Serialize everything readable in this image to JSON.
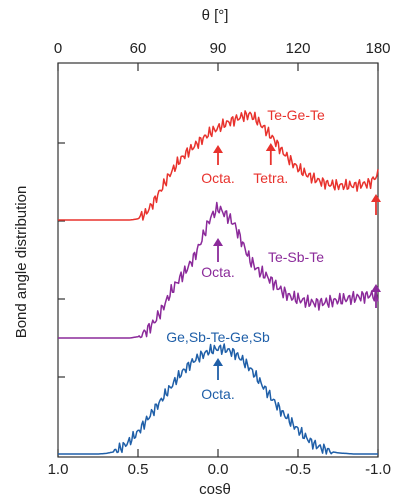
{
  "chart_data": {
    "type": "line",
    "title": "",
    "xlabel_top": "θ  [°]",
    "xlabel_bottom": "cosθ",
    "ylabel": "Bond angle distribution",
    "x_top_ticks": [
      "0",
      "60",
      "90",
      "120",
      "180"
    ],
    "x_top_tick_values_deg": [
      0,
      60,
      90,
      120,
      180
    ],
    "x_bottom_ticks": [
      "1.0",
      "0.5",
      "0.0",
      "-0.5",
      "-1.0"
    ],
    "x_bottom_tick_values": [
      1.0,
      0.5,
      0.0,
      -0.5,
      -1.0
    ],
    "xlim_cos": [
      1.0,
      -1.0
    ],
    "y_ticks_shown": false,
    "grid": false,
    "series": [
      {
        "name": "Te-Ge-Te",
        "color": "#e8322d",
        "baseline": 0.0,
        "x": [
          1.0,
          0.55,
          0.5,
          0.45,
          0.4,
          0.35,
          0.3,
          0.25,
          0.2,
          0.15,
          0.1,
          0.05,
          0.0,
          -0.05,
          -0.1,
          -0.15,
          -0.2,
          -0.25,
          -0.3,
          -0.35,
          -0.4,
          -0.45,
          -0.5,
          -0.55,
          -0.6,
          -0.65,
          -0.7,
          -0.75,
          -0.8,
          -0.85,
          -0.9,
          -0.95,
          -1.0
        ],
        "values": [
          0.0,
          0.0,
          0.01,
          0.06,
          0.16,
          0.28,
          0.4,
          0.5,
          0.58,
          0.64,
          0.7,
          0.76,
          0.8,
          0.84,
          0.87,
          0.9,
          0.92,
          0.86,
          0.78,
          0.7,
          0.6,
          0.52,
          0.45,
          0.4,
          0.36,
          0.33,
          0.31,
          0.3,
          0.3,
          0.3,
          0.31,
          0.32,
          0.4
        ]
      },
      {
        "name": "Te-Sb-Te",
        "color": "#8b2a9a",
        "baseline": 0.0,
        "x": [
          1.0,
          0.55,
          0.5,
          0.45,
          0.4,
          0.35,
          0.3,
          0.25,
          0.2,
          0.15,
          0.1,
          0.05,
          0.0,
          -0.05,
          -0.1,
          -0.15,
          -0.2,
          -0.25,
          -0.3,
          -0.35,
          -0.4,
          -0.45,
          -0.5,
          -0.55,
          -0.6,
          -0.65,
          -0.7,
          -0.75,
          -0.8,
          -0.85,
          -0.9,
          -0.95,
          -1.0
        ],
        "values": [
          0.0,
          0.0,
          0.01,
          0.05,
          0.12,
          0.22,
          0.34,
          0.44,
          0.52,
          0.62,
          0.76,
          0.92,
          1.0,
          0.95,
          0.88,
          0.74,
          0.6,
          0.52,
          0.48,
          0.42,
          0.36,
          0.32,
          0.3,
          0.28,
          0.27,
          0.27,
          0.28,
          0.29,
          0.3,
          0.31,
          0.32,
          0.33,
          0.32
        ]
      },
      {
        "name": "Ge,Sb-Te-Ge,Sb",
        "color": "#1f5fa8",
        "baseline": 0.0,
        "x": [
          1.0,
          0.75,
          0.7,
          0.65,
          0.6,
          0.55,
          0.5,
          0.45,
          0.4,
          0.35,
          0.3,
          0.25,
          0.2,
          0.15,
          0.1,
          0.05,
          0.0,
          -0.05,
          -0.1,
          -0.15,
          -0.2,
          -0.25,
          -0.3,
          -0.35,
          -0.4,
          -0.45,
          -0.5,
          -0.55,
          -0.6,
          -0.65,
          -0.7,
          -0.75,
          -0.8,
          -0.85,
          -0.9,
          -0.95,
          -1.0
        ],
        "values": [
          0.0,
          0.0,
          0.005,
          0.02,
          0.06,
          0.12,
          0.2,
          0.3,
          0.4,
          0.5,
          0.6,
          0.7,
          0.78,
          0.85,
          0.9,
          0.94,
          0.96,
          0.95,
          0.92,
          0.86,
          0.78,
          0.68,
          0.58,
          0.48,
          0.38,
          0.3,
          0.22,
          0.15,
          0.09,
          0.05,
          0.025,
          0.01,
          0.005,
          0.0,
          0.0,
          0.0,
          0.0
        ]
      }
    ],
    "annotations": [
      {
        "series": "Te-Ge-Te",
        "text": "Octa.",
        "x_cos": 0.0
      },
      {
        "series": "Te-Ge-Te",
        "text": "Tetra.",
        "x_cos": -0.33
      },
      {
        "series": "Te-Ge-Te",
        "text": "",
        "x_cos": -1.0
      },
      {
        "series": "Te-Sb-Te",
        "text": "Octa.",
        "x_cos": 0.0
      },
      {
        "series": "Te-Sb-Te",
        "text": "",
        "x_cos": -1.0
      },
      {
        "series": "Ge,Sb-Te-Ge,Sb",
        "text": "Octa.",
        "x_cos": 0.0
      }
    ]
  }
}
